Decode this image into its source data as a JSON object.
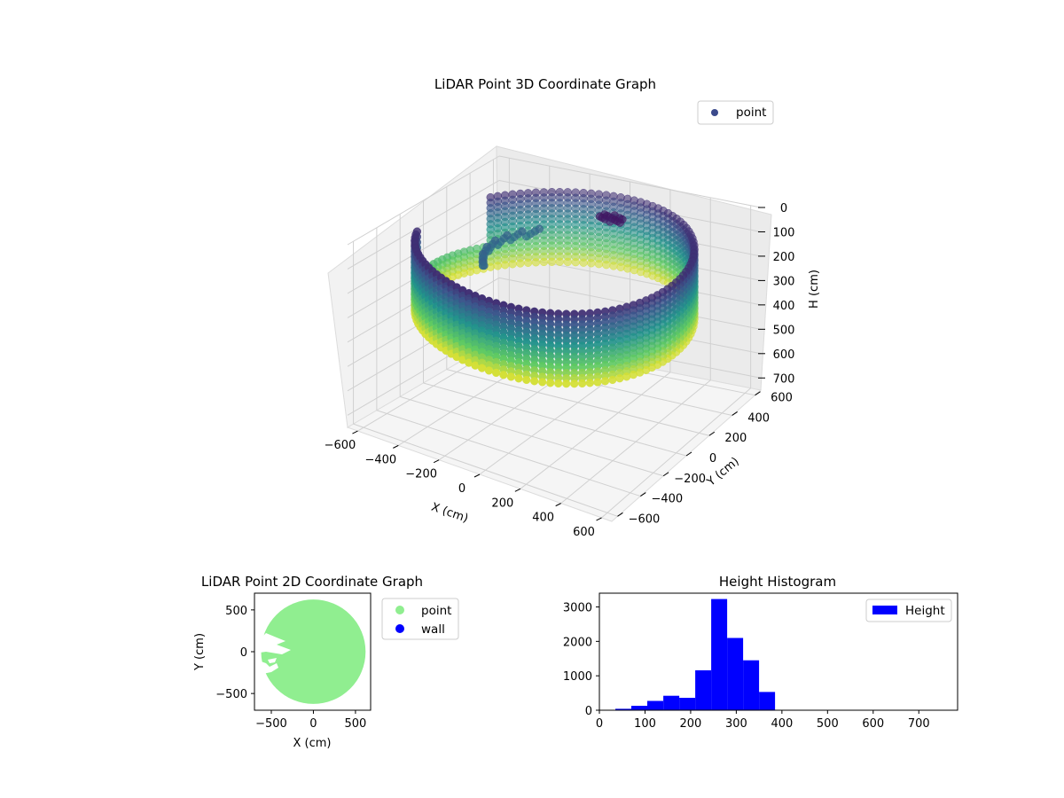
{
  "chart_data": [
    {
      "type": "scatter",
      "title": "LiDAR Point 3D Coordinate Graph",
      "xlabel": "X (cm)",
      "ylabel": "Y (cm)",
      "zlabel": "H (cm)",
      "xlim": [
        -650,
        650
      ],
      "ylim": [
        -650,
        650
      ],
      "zlim": [
        750,
        0
      ],
      "xticks": [
        "−600",
        "−400",
        "−200",
        "0",
        "200",
        "400",
        "600"
      ],
      "yticks": [
        "−600",
        "−400",
        "−200",
        "0",
        "200",
        "400",
        "600"
      ],
      "zticks": [
        "0",
        "100",
        "200",
        "300",
        "400",
        "500",
        "600",
        "700"
      ],
      "legend": {
        "position": "top-right",
        "entries": [
          {
            "label": "point",
            "color": "#3b4a8c"
          }
        ]
      },
      "colormap": "viridis",
      "grid": true,
      "shape": "cylindrical wall of points, radius about 600 cm, heights 50 to 350 cm, with a gap on the negative-X side and a cluster of dark points near the center top"
    },
    {
      "type": "scatter",
      "title": "LiDAR Point 2D Coordinate Graph",
      "xlabel": "X (cm)",
      "ylabel": "Y (cm)",
      "xlim": [
        -700,
        680
      ],
      "ylim": [
        -700,
        700
      ],
      "xticks": [
        -500,
        0,
        500
      ],
      "yticks": [
        -500,
        0,
        500
      ],
      "legend": {
        "position": "outside-right",
        "entries": [
          {
            "label": "point",
            "color": "#90ee90"
          },
          {
            "label": "wall",
            "color": "#0000ff"
          }
        ]
      },
      "region": "filled disk of radius about 620 cm centered near (0, 0) with white notches on the left side around y from -250 to 150"
    },
    {
      "type": "bar",
      "title": "Height Histogram",
      "legend": {
        "position": "top-right",
        "entries": [
          {
            "label": "Height",
            "color": "#0000ff"
          }
        ]
      },
      "xlim": [
        0,
        785
      ],
      "ylim": [
        0,
        3400
      ],
      "xticks": [
        0,
        100,
        200,
        300,
        400,
        500,
        600,
        700
      ],
      "yticks": [
        0,
        1000,
        2000,
        3000
      ],
      "bin_width": 35,
      "bins": [
        {
          "start": 0,
          "value": 0
        },
        {
          "start": 35,
          "value": 40
        },
        {
          "start": 70,
          "value": 130
        },
        {
          "start": 105,
          "value": 270
        },
        {
          "start": 140,
          "value": 420
        },
        {
          "start": 175,
          "value": 360
        },
        {
          "start": 210,
          "value": 1160
        },
        {
          "start": 245,
          "value": 3230
        },
        {
          "start": 280,
          "value": 2100
        },
        {
          "start": 315,
          "value": 1450
        },
        {
          "start": 350,
          "value": 530
        }
      ]
    }
  ]
}
